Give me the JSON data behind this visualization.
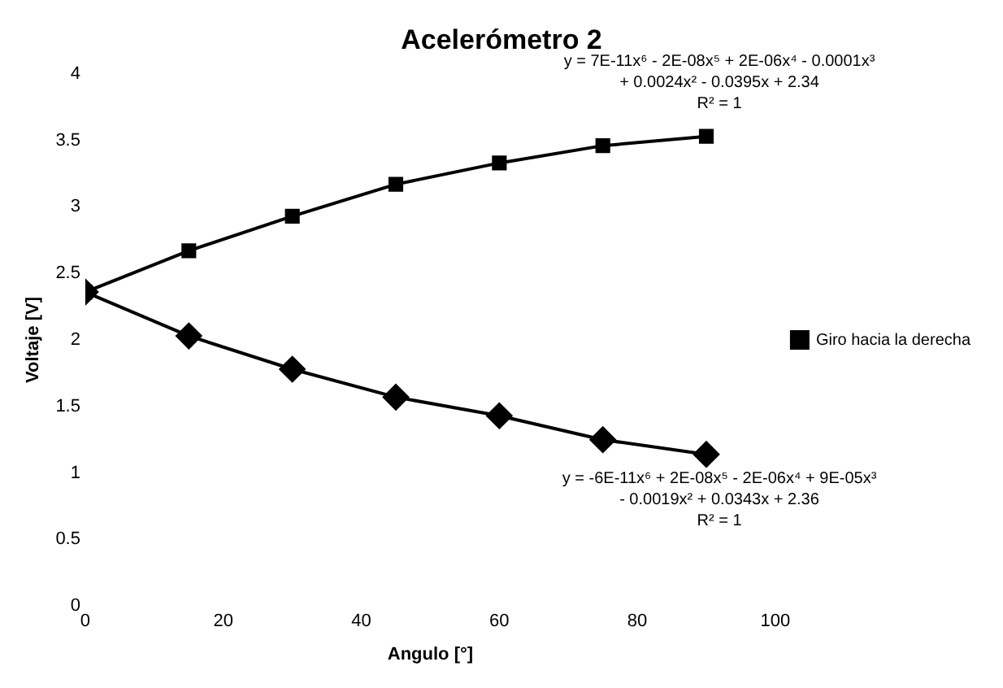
{
  "chart_data": {
    "type": "line",
    "title": "Acelerómetro 2",
    "xlabel": "Angulo [°]",
    "ylabel": "Voltaje [V]",
    "x": [
      0,
      15,
      30,
      45,
      60,
      75,
      90
    ],
    "series": [
      {
        "name": "Giro hacia la derecha",
        "color": "#000000",
        "marker": "square",
        "values": [
          2.36,
          2.67,
          2.93,
          3.17,
          3.33,
          3.46,
          3.53
        ]
      },
      {
        "color": "#000000",
        "marker": "diamond",
        "values": [
          2.36,
          2.03,
          1.78,
          1.57,
          1.43,
          1.25,
          1.14
        ]
      }
    ],
    "xlim": [
      0,
      100
    ],
    "xticks": [
      0,
      20,
      40,
      60,
      80,
      100
    ],
    "ylim": [
      0,
      4
    ],
    "yticks": [
      0,
      0.5,
      1,
      1.5,
      2,
      2.5,
      3,
      3.5,
      4
    ],
    "grid": false,
    "legend": "right",
    "line_style": "solid",
    "annotations": [
      {
        "text": "y = 7E-11x⁶ - 2E-08x⁵ + 2E-06x⁴ - 0.0001x³\n+ 0.0024x² - 0.0395x + 2.34\nR² = 1",
        "x": 90,
        "y": 3.53
      },
      {
        "text": "y = -6E-11x⁶ + 2E-08x⁵ - 2E-06x⁴ + 9E-05x³\n- 0.0019x² + 0.0343x + 2.36\nR² = 1",
        "x": 90,
        "y": 1.14
      }
    ]
  }
}
